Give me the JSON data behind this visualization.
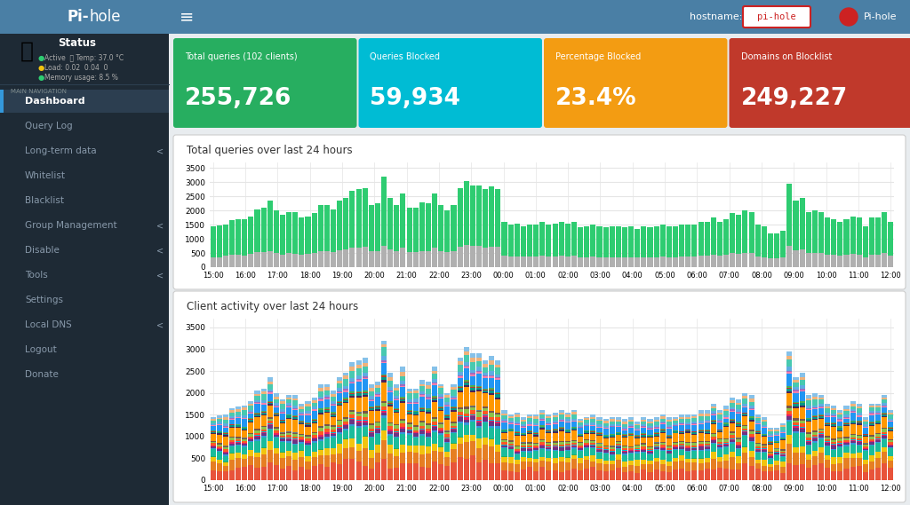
{
  "title": "Pi-hole",
  "header_bg": "#4a7fa5",
  "sidebar_bg": "#1e2a35",
  "sidebar_active_bg": "#2c3e50",
  "main_bg": "#e8ecef",
  "card_colors": [
    "#27ae60",
    "#00bcd4",
    "#f39c12",
    "#c0392b"
  ],
  "card_titles": [
    "Total queries (102 clients)",
    "Queries Blocked",
    "Percentage Blocked",
    "Domains on Blocklist"
  ],
  "card_values": [
    "255,726",
    "59,934",
    "23.4%",
    "249,227"
  ],
  "chart1_title": "Total queries over last 24 hours",
  "chart2_title": "Client activity over last 24 hours",
  "x_labels": [
    "15:00",
    "16:00",
    "17:00",
    "18:00",
    "19:00",
    "20:00",
    "21:00",
    "22:00",
    "23:00",
    "00:00",
    "01:00",
    "02:00",
    "03:00",
    "04:00",
    "05:00",
    "06:00",
    "07:00",
    "08:00",
    "09:00",
    "10:00",
    "11:00",
    "12:00"
  ],
  "green_bars": [
    1450,
    1480,
    1500,
    1650,
    1680,
    1700,
    1800,
    2050,
    2100,
    2350,
    2000,
    1850,
    1950,
    1950,
    1750,
    1800,
    1900,
    2200,
    2200,
    2050,
    2350,
    2450,
    2700,
    2750,
    2800,
    2200,
    2250,
    3200,
    2450,
    2200,
    2600,
    2100,
    2100,
    2300,
    2250,
    2600,
    2200,
    2000,
    2200,
    2800,
    3050,
    2900,
    2900,
    2750,
    2850,
    2750,
    1600,
    1500,
    1550,
    1450,
    1500,
    1500,
    1600,
    1500,
    1550,
    1600,
    1550,
    1600,
    1400,
    1450,
    1500,
    1450,
    1400,
    1450,
    1450,
    1400,
    1450,
    1350,
    1450,
    1400,
    1450,
    1500,
    1450,
    1450,
    1500,
    1500,
    1500,
    1600,
    1600,
    1750,
    1600,
    1700,
    1900,
    1850,
    2000,
    1950,
    1500,
    1450,
    1200,
    1200,
    1300,
    2950,
    2350,
    2450,
    1950,
    2000,
    1950,
    1750,
    1700,
    1600,
    1700,
    1800,
    1750,
    1450,
    1750,
    1750,
    1950,
    1600
  ],
  "grey_bars": [
    350,
    350,
    400,
    450,
    430,
    420,
    480,
    520,
    530,
    580,
    500,
    450,
    500,
    480,
    450,
    460,
    490,
    550,
    560,
    520,
    600,
    620,
    700,
    700,
    720,
    560,
    580,
    750,
    620,
    560,
    680,
    540,
    540,
    580,
    570,
    680,
    570,
    520,
    560,
    720,
    780,
    750,
    750,
    700,
    720,
    720,
    400,
    380,
    390,
    370,
    380,
    380,
    400,
    380,
    390,
    400,
    390,
    410,
    350,
    360,
    380,
    360,
    350,
    360,
    360,
    350,
    360,
    340,
    360,
    350,
    360,
    380,
    360,
    360,
    380,
    380,
    380,
    400,
    400,
    450,
    400,
    430,
    490,
    470,
    500,
    490,
    380,
    360,
    300,
    300,
    330,
    750,
    600,
    620,
    500,
    500,
    490,
    440,
    430,
    400,
    430,
    460,
    440,
    360,
    440,
    440,
    490,
    400
  ],
  "client_colors": [
    "#e8533a",
    "#e67e22",
    "#f1c40f",
    "#27ae60",
    "#1abc9c",
    "#3498db",
    "#6c3483",
    "#e91e63",
    "#00bcd4",
    "#ff5722",
    "#8bc34a",
    "#795548",
    "#607d8b",
    "#ff9800",
    "#4a235a",
    "#009688",
    "#c0392b",
    "#4caf50",
    "#2196f3",
    "#ff80ab",
    "#a569bd",
    "#5dade2",
    "#48c9b0",
    "#f0b27a",
    "#85c1e9"
  ],
  "nav_items": [
    "Dashboard",
    "Query Log",
    "Long-term data",
    "Whitelist",
    "Blacklist",
    "Group Management",
    "Disable",
    "Tools",
    "Settings",
    "Local DNS",
    "Logout",
    "Donate"
  ],
  "nav_icons": [
    "⌂",
    "▤",
    "◔",
    "✓",
    "∅",
    "�",
    "□",
    "▣",
    "⚙",
    "▦",
    "�",
    "▶"
  ],
  "nav_has_arrow": [
    false,
    false,
    true,
    false,
    false,
    true,
    true,
    true,
    false,
    true,
    false,
    false
  ]
}
